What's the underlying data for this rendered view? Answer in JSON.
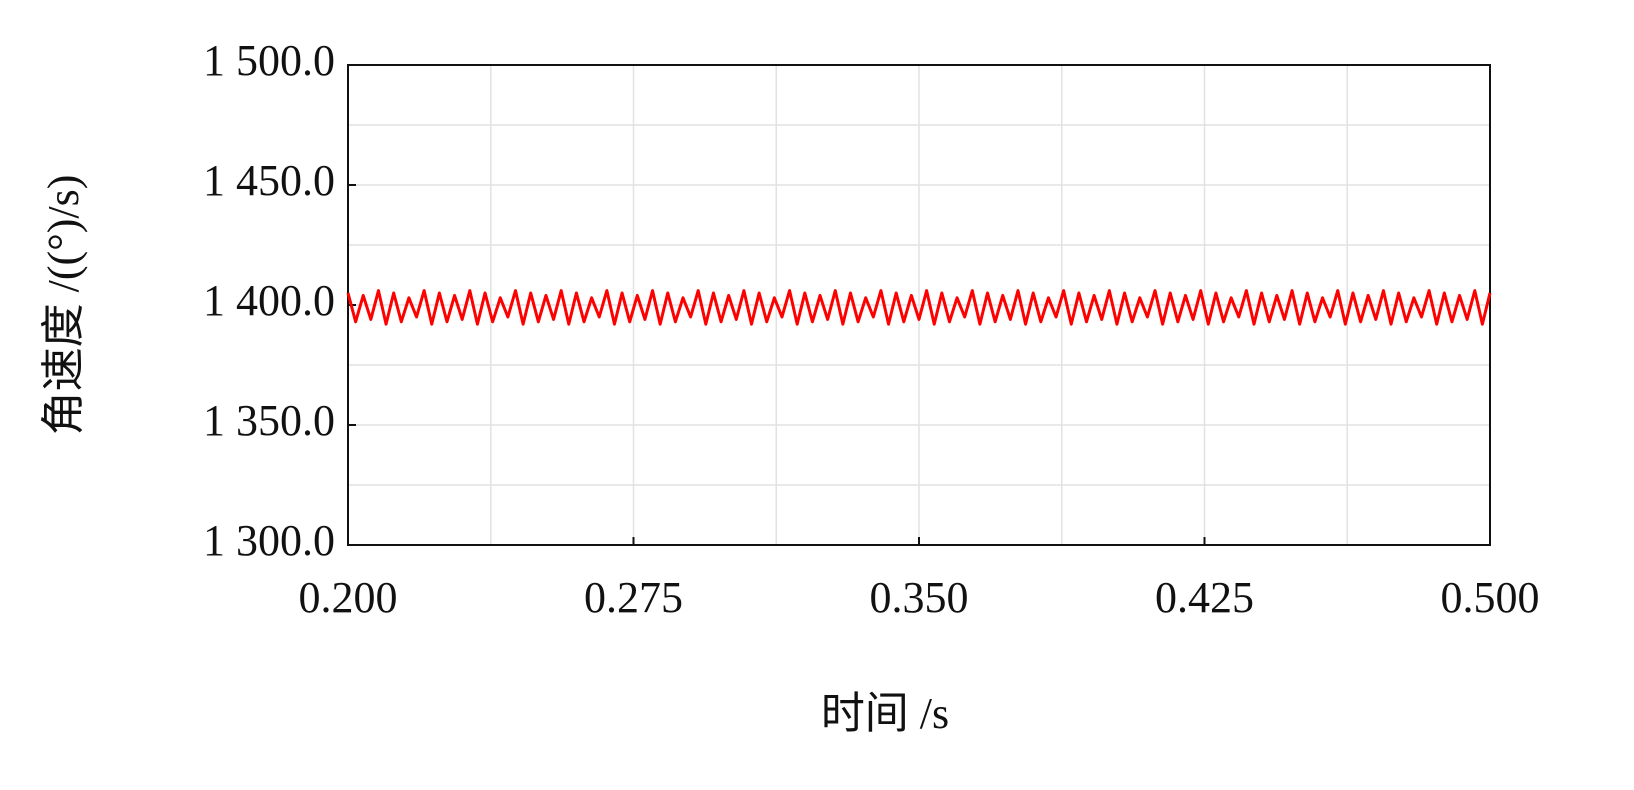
{
  "chart_data": {
    "type": "line",
    "xlabel": "时间 /s",
    "ylabel": "角速度 /((°)/s)",
    "xlim": [
      0.2,
      0.5
    ],
    "ylim": [
      1300,
      1500
    ],
    "xticks": [
      {
        "value": 0.2,
        "label": "0.200"
      },
      {
        "value": 0.275,
        "label": "0.275"
      },
      {
        "value": 0.35,
        "label": "0.350"
      },
      {
        "value": 0.425,
        "label": "0.425"
      },
      {
        "value": 0.5,
        "label": "0.500"
      }
    ],
    "yticks": [
      {
        "value": 1300,
        "label": "1 300.0"
      },
      {
        "value": 1350,
        "label": "1 350.0"
      },
      {
        "value": 1400,
        "label": "1 400.0"
      },
      {
        "value": 1450,
        "label": "1 450.0"
      },
      {
        "value": 1500,
        "label": "1 500.0"
      }
    ],
    "x_minor_grid": [
      0.2375,
      0.3125,
      0.3875,
      0.4625
    ],
    "y_minor_grid": [
      1325,
      1375,
      1425,
      1475
    ],
    "grid": true,
    "x": [
      0.2,
      0.202,
      0.204,
      0.206,
      0.208,
      0.21,
      0.212,
      0.214,
      0.216,
      0.218,
      0.22,
      0.222,
      0.224,
      0.226,
      0.228,
      0.23,
      0.232,
      0.234,
      0.236,
      0.238,
      0.24,
      0.242,
      0.244,
      0.246,
      0.248,
      0.25,
      0.252,
      0.254,
      0.256,
      0.258,
      0.26,
      0.262,
      0.264,
      0.266,
      0.268,
      0.27,
      0.272,
      0.274,
      0.276,
      0.278,
      0.28,
      0.282,
      0.284,
      0.286,
      0.288,
      0.29,
      0.292,
      0.294,
      0.296,
      0.298,
      0.3,
      0.302,
      0.304,
      0.306,
      0.308,
      0.31,
      0.312,
      0.314,
      0.316,
      0.318,
      0.32,
      0.322,
      0.324,
      0.326,
      0.328,
      0.33,
      0.332,
      0.334,
      0.336,
      0.338,
      0.34,
      0.342,
      0.344,
      0.346,
      0.348,
      0.35,
      0.352,
      0.354,
      0.356,
      0.358,
      0.36,
      0.362,
      0.364,
      0.366,
      0.368,
      0.37,
      0.372,
      0.374,
      0.376,
      0.378,
      0.38,
      0.382,
      0.384,
      0.386,
      0.388,
      0.39,
      0.392,
      0.394,
      0.396,
      0.398,
      0.4,
      0.402,
      0.404,
      0.406,
      0.408,
      0.41,
      0.412,
      0.414,
      0.416,
      0.418,
      0.42,
      0.422,
      0.424,
      0.426,
      0.428,
      0.43,
      0.432,
      0.434,
      0.436,
      0.438,
      0.44,
      0.442,
      0.444,
      0.446,
      0.448,
      0.45,
      0.452,
      0.454,
      0.456,
      0.458,
      0.46,
      0.462,
      0.464,
      0.466,
      0.468,
      0.47,
      0.472,
      0.474,
      0.476,
      0.478,
      0.48,
      0.482,
      0.484,
      0.486,
      0.488,
      0.49,
      0.492,
      0.494,
      0.496,
      0.498,
      0.5
    ],
    "series": [
      {
        "color": "#ff0000",
        "values": [
          1405,
          1393,
          1404,
          1394,
          1406,
          1392,
          1405,
          1393,
          1403,
          1395,
          1406,
          1392,
          1405,
          1393,
          1404,
          1394,
          1406,
          1392,
          1405,
          1393,
          1403,
          1395,
          1406,
          1392,
          1405,
          1393,
          1404,
          1394,
          1406,
          1392,
          1405,
          1393,
          1403,
          1395,
          1406,
          1392,
          1405,
          1393,
          1404,
          1394,
          1406,
          1392,
          1405,
          1393,
          1403,
          1395,
          1406,
          1392,
          1405,
          1393,
          1404,
          1394,
          1406,
          1392,
          1405,
          1393,
          1403,
          1395,
          1406,
          1392,
          1405,
          1393,
          1404,
          1394,
          1406,
          1392,
          1405,
          1393,
          1403,
          1395,
          1406,
          1392,
          1405,
          1393,
          1404,
          1394,
          1406,
          1392,
          1405,
          1393,
          1403,
          1395,
          1406,
          1392,
          1405,
          1393,
          1404,
          1394,
          1406,
          1392,
          1405,
          1393,
          1403,
          1395,
          1406,
          1392,
          1405,
          1393,
          1404,
          1394,
          1406,
          1392,
          1405,
          1393,
          1403,
          1395,
          1406,
          1392,
          1405,
          1393,
          1404,
          1394,
          1406,
          1392,
          1405,
          1393,
          1403,
          1395,
          1406,
          1392,
          1405,
          1393,
          1404,
          1394,
          1406,
          1392,
          1405,
          1393,
          1403,
          1395,
          1406,
          1392,
          1405,
          1393,
          1404,
          1394,
          1406,
          1392,
          1405,
          1393,
          1403,
          1395,
          1406,
          1392,
          1405,
          1393,
          1404,
          1394,
          1406,
          1392,
          1405
        ]
      }
    ]
  }
}
